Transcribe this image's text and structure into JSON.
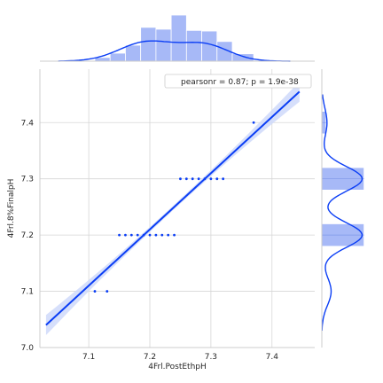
{
  "chart_data": {
    "type": "scatter",
    "xlabel": "4Frl.PostEthpH",
    "ylabel": "4Frl.8%FinalpH",
    "xlim": [
      7.02,
      7.47
    ],
    "ylim": [
      7.0,
      7.495
    ],
    "x_ticks": [
      "7.1",
      "7.2",
      "7.3",
      "7.4"
    ],
    "y_ticks": [
      "7.0",
      "7.1",
      "7.2",
      "7.3",
      "7.4"
    ],
    "grid": true,
    "annotation": "pearsonr = 0.87; p = 1.9e-38",
    "legend_placement": "top-right",
    "points": [
      [
        7.11,
        7.1
      ],
      [
        7.13,
        7.1
      ],
      [
        7.15,
        7.2
      ],
      [
        7.16,
        7.2
      ],
      [
        7.17,
        7.2
      ],
      [
        7.18,
        7.2
      ],
      [
        7.19,
        7.2
      ],
      [
        7.2,
        7.2
      ],
      [
        7.21,
        7.2
      ],
      [
        7.22,
        7.2
      ],
      [
        7.23,
        7.2
      ],
      [
        7.24,
        7.2
      ],
      [
        7.25,
        7.3
      ],
      [
        7.26,
        7.3
      ],
      [
        7.27,
        7.3
      ],
      [
        7.28,
        7.3
      ],
      [
        7.29,
        7.3
      ],
      [
        7.3,
        7.3
      ],
      [
        7.31,
        7.3
      ],
      [
        7.32,
        7.3
      ],
      [
        7.37,
        7.4
      ]
    ],
    "regression_line": {
      "x": [
        7.03,
        7.445
      ],
      "y": [
        7.04,
        7.455
      ]
    },
    "top_histogram": {
      "bin_edges": [
        7.11,
        7.135,
        7.16,
        7.185,
        7.21,
        7.235,
        7.26,
        7.285,
        7.31,
        7.335,
        7.37
      ],
      "density": [
        0.6,
        1.3,
        2.6,
        5.5,
        5.2,
        7.5,
        5.0,
        4.9,
        3.2,
        1.2
      ]
    },
    "right_histogram": {
      "bins": [
        [
          7.18,
          7.22,
          4.0
        ],
        [
          7.28,
          7.32,
          4.0
        ],
        [
          7.38,
          7.42,
          0.4
        ]
      ]
    },
    "colors": {
      "primary": "#0b3ef5",
      "hist_fill": "#a7b9f7",
      "band": "#cfd9fa",
      "grid": "#d6d6d6"
    }
  }
}
